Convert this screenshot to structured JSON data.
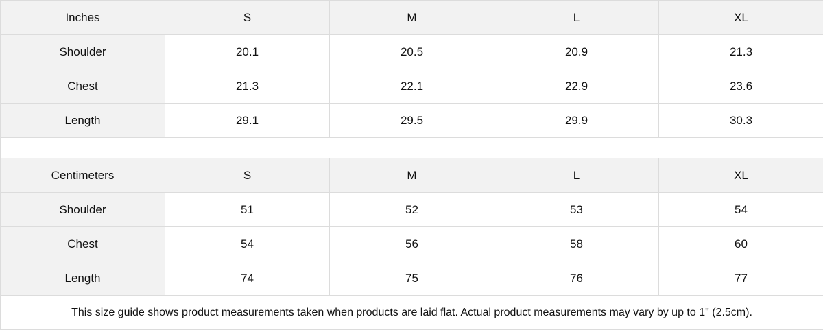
{
  "inches": {
    "header": [
      "Inches",
      "S",
      "M",
      "L",
      "XL"
    ],
    "rows": [
      {
        "label": "Shoulder",
        "values": [
          "20.1",
          "20.5",
          "20.9",
          "21.3"
        ]
      },
      {
        "label": "Chest",
        "values": [
          "21.3",
          "22.1",
          "22.9",
          "23.6"
        ]
      },
      {
        "label": "Length",
        "values": [
          "29.1",
          "29.5",
          "29.9",
          "30.3"
        ]
      }
    ]
  },
  "centimeters": {
    "header": [
      "Centimeters",
      "S",
      "M",
      "L",
      "XL"
    ],
    "rows": [
      {
        "label": "Shoulder",
        "values": [
          "51",
          "52",
          "53",
          "54"
        ]
      },
      {
        "label": "Chest",
        "values": [
          "54",
          "56",
          "58",
          "60"
        ]
      },
      {
        "label": "Length",
        "values": [
          "74",
          "75",
          "76",
          "77"
        ]
      }
    ]
  },
  "note": "This size guide shows product measurements taken when products are laid flat.  Actual product measurements may vary by up to 1\" (2.5cm).",
  "colors": {
    "header_bg": "#f2f2f2",
    "border": "#dcdcdc"
  }
}
